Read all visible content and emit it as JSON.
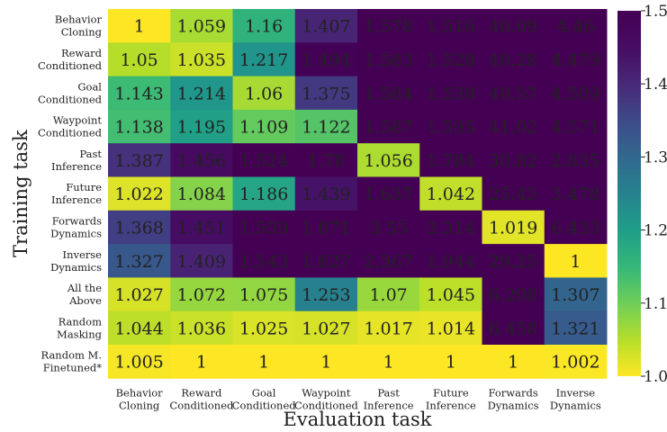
{
  "chart_data": {
    "type": "heatmap",
    "title": "",
    "xlabel": "Evaluation task",
    "ylabel": "Training task",
    "x_categories": [
      [
        "Behavior",
        "Cloning"
      ],
      [
        "Reward",
        "Conditioned"
      ],
      [
        "Goal",
        "Conditioned"
      ],
      [
        "Waypoint",
        "Conditioned"
      ],
      [
        "Past",
        "Inference"
      ],
      [
        "Future",
        "Inference"
      ],
      [
        "Forwards",
        "Dynamics"
      ],
      [
        "Inverse",
        "Dynamics"
      ]
    ],
    "y_categories": [
      [
        "Behavior",
        "Cloning"
      ],
      [
        "Reward",
        "Conditioned"
      ],
      [
        "Goal",
        "Conditioned"
      ],
      [
        "Waypoint",
        "Conditioned"
      ],
      [
        "Past",
        "Inference"
      ],
      [
        "Future",
        "Inference"
      ],
      [
        "Forwards",
        "Dynamics"
      ],
      [
        "Inverse",
        "Dynamics"
      ],
      [
        "All the",
        "Above"
      ],
      [
        "Random",
        "Masking"
      ],
      [
        "Random M.",
        "Finetuned*"
      ]
    ],
    "values": [
      [
        "1",
        "1.059",
        "1.16",
        "1.407",
        "1.578",
        "1.516",
        "40.09",
        "4.46"
      ],
      [
        "1.05",
        "1.035",
        "1.217",
        "1.494",
        "1.583",
        "1.528",
        "40.28",
        "4.479"
      ],
      [
        "1.143",
        "1.214",
        "1.06",
        "1.375",
        "1.584",
        "1.538",
        "40.57",
        "4.509"
      ],
      [
        "1.138",
        "1.195",
        "1.109",
        "1.122",
        "1.587",
        "1.595",
        "41.02",
        "4.571"
      ],
      [
        "1.387",
        "1.456",
        "1.524",
        "1.78",
        "1.056",
        "1.784",
        "30.82",
        "2.835"
      ],
      [
        "1.022",
        "1.084",
        "1.186",
        "1.439",
        "1.637",
        "1.042",
        "25.43",
        "3.478"
      ],
      [
        "1.368",
        "1.451",
        "1.559",
        "1.871",
        "3.55",
        "3.314",
        "1.019",
        "6.433"
      ],
      [
        "1.327",
        "1.409",
        "1.543",
        "1.827",
        "2.367",
        "1.944",
        "29.25",
        "1"
      ],
      [
        "1.027",
        "1.072",
        "1.075",
        "1.253",
        "1.07",
        "1.045",
        "6.208",
        "1.307"
      ],
      [
        "1.044",
        "1.036",
        "1.025",
        "1.027",
        "1.017",
        "1.014",
        "6.458",
        "1.321"
      ],
      [
        "1.005",
        "1",
        "1",
        "1",
        "1",
        "1",
        "1",
        "1.002"
      ]
    ],
    "colorbar": {
      "range": [
        1.0,
        1.5
      ],
      "ticks": [
        "1.0",
        "1.1",
        "1.2",
        "1.3",
        "1.4",
        "1.5"
      ],
      "colormap": "viridis_r"
    }
  }
}
